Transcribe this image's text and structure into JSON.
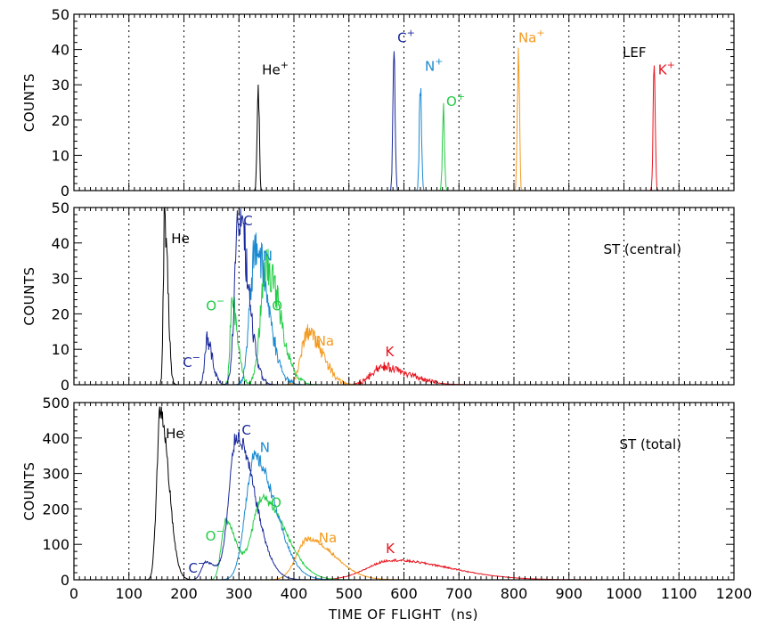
{
  "figure": {
    "xlabel": "TIME OF FLIGHT  (ns)",
    "xlim": [
      0,
      1200
    ],
    "x_major_ticks": [
      0,
      100,
      200,
      300,
      400,
      500,
      600,
      700,
      800,
      900,
      1000,
      1100,
      1200
    ],
    "x_tick_labels": [
      "0",
      "100",
      "200",
      "300",
      "400",
      "500",
      "600",
      "700",
      "800",
      "900",
      "1000",
      "1100",
      "1200"
    ],
    "vertical_dotted_gridlines_at": [
      100,
      200,
      300,
      400,
      500,
      600,
      700,
      800,
      900,
      1000,
      1100
    ],
    "colors": {
      "He": "#000000",
      "C": "#1a2a9c",
      "N": "#1a8ad0",
      "O": "#22cc44",
      "Na": "#f39a1e",
      "K": "#e8141e"
    }
  },
  "chart_data": [
    {
      "type": "line",
      "ylabel": "COUNTS",
      "ylim": [
        0,
        50
      ],
      "y_ticks": [
        0,
        10,
        20,
        30,
        40,
        50
      ],
      "y_tick_labels": [
        "0",
        "10",
        "20",
        "30",
        "40",
        "50"
      ],
      "note": "LEF",
      "grid": "vertical dotted",
      "series": [
        {
          "species": "He",
          "peaks": [
            {
              "x": 335,
              "height": 29,
              "width": 2
            }
          ]
        },
        {
          "species": "C",
          "peaks": [
            {
              "x": 582,
              "height": 41,
              "width": 2
            }
          ]
        },
        {
          "species": "N",
          "peaks": [
            {
              "x": 630,
              "height": 31,
              "width": 2
            }
          ]
        },
        {
          "species": "O",
          "peaks": [
            {
              "x": 672,
              "height": 21,
              "width": 2
            }
          ]
        },
        {
          "species": "Na",
          "peaks": [
            {
              "x": 808,
              "height": 39,
              "width": 2
            }
          ]
        },
        {
          "species": "K",
          "peaks": [
            {
              "x": 1055,
              "height": 34,
              "width": 2
            }
          ]
        }
      ],
      "annotations": [
        {
          "text": "He",
          "sup": "+",
          "species": "He",
          "x": 342,
          "y": 33
        },
        {
          "text": "C",
          "sup": "+",
          "species": "C",
          "x": 588,
          "y": 42
        },
        {
          "text": "N",
          "sup": "+",
          "species": "N",
          "x": 638,
          "y": 34
        },
        {
          "text": "O",
          "sup": "+",
          "species": "O",
          "x": 677,
          "y": 24
        },
        {
          "text": "Na",
          "sup": "+",
          "species": "Na",
          "x": 808,
          "y": 42
        },
        {
          "text": "K",
          "sup": "+",
          "species": "K",
          "x": 1062,
          "y": 33
        }
      ]
    },
    {
      "type": "line",
      "ylabel": "COUNTS",
      "ylim": [
        0,
        50
      ],
      "y_ticks": [
        0,
        10,
        20,
        30,
        40,
        50
      ],
      "y_tick_labels": [
        "0",
        "10",
        "20",
        "30",
        "40",
        "50"
      ],
      "note": "ST (central)",
      "grid": "vertical dotted",
      "series": [
        {
          "species": "He",
          "peaks": [
            {
              "x": 165,
              "height": 49,
              "width": 3
            }
          ]
        },
        {
          "species": "C",
          "peaks": [
            {
              "x": 242,
              "height": 13,
              "width": 5
            },
            {
              "x": 300,
              "height": 48,
              "width": 9
            }
          ]
        },
        {
          "species": "N",
          "peaks": [
            {
              "x": 330,
              "height": 39,
              "width": 12
            }
          ]
        },
        {
          "species": "O",
          "peaks": [
            {
              "x": 288,
              "height": 24,
              "width": 5
            },
            {
              "x": 350,
              "height": 33,
              "width": 13
            }
          ]
        },
        {
          "species": "Na",
          "peaks": [
            {
              "x": 425,
              "height": 15,
              "width": 14
            }
          ]
        },
        {
          "species": "K",
          "peaks": [
            {
              "x": 560,
              "height": 5,
              "width": 25
            }
          ]
        }
      ],
      "annotations": [
        {
          "text": "He",
          "sup": "",
          "species": "He",
          "x": 177,
          "y": 40
        },
        {
          "text": "C",
          "sup": "",
          "species": "C",
          "x": 308,
          "y": 45
        },
        {
          "text": "N",
          "sup": "",
          "species": "N",
          "x": 343,
          "y": 35
        },
        {
          "text": "O",
          "sup": "",
          "species": "O",
          "x": 360,
          "y": 21
        },
        {
          "text": "O",
          "sup": "−",
          "species": "O",
          "x": 240,
          "y": 21
        },
        {
          "text": "C",
          "sup": "−",
          "species": "C",
          "x": 198,
          "y": 5
        },
        {
          "text": "Na",
          "sup": "",
          "species": "Na",
          "x": 440,
          "y": 11
        },
        {
          "text": "K",
          "sup": "",
          "species": "K",
          "x": 566,
          "y": 8
        }
      ]
    },
    {
      "type": "line",
      "ylabel": "COUNTS",
      "ylim": [
        0,
        500
      ],
      "y_ticks": [
        0,
        100,
        200,
        300,
        400,
        500
      ],
      "y_tick_labels": [
        "0",
        "100",
        "200",
        "300",
        "400",
        "500"
      ],
      "note": "ST (total)",
      "grid": "vertical dotted",
      "series": [
        {
          "species": "He",
          "peaks": [
            {
              "x": 157,
              "height": 478,
              "width": 8
            }
          ]
        },
        {
          "species": "C",
          "peaks": [
            {
              "x": 240,
              "height": 50,
              "width": 10
            },
            {
              "x": 296,
              "height": 405,
              "width": 17
            }
          ]
        },
        {
          "species": "N",
          "peaks": [
            {
              "x": 328,
              "height": 345,
              "width": 20
            }
          ]
        },
        {
          "species": "O",
          "peaks": [
            {
              "x": 276,
              "height": 165,
              "width": 10
            },
            {
              "x": 342,
              "height": 230,
              "width": 22
            }
          ]
        },
        {
          "species": "Na",
          "peaks": [
            {
              "x": 425,
              "height": 115,
              "width": 25
            }
          ]
        },
        {
          "species": "K",
          "peaks": [
            {
              "x": 578,
              "height": 55,
              "width": 55
            }
          ]
        }
      ],
      "annotations": [
        {
          "text": "He",
          "sup": "",
          "species": "He",
          "x": 167,
          "y": 400
        },
        {
          "text": "C",
          "sup": "",
          "species": "C",
          "x": 305,
          "y": 410
        },
        {
          "text": "N",
          "sup": "",
          "species": "N",
          "x": 338,
          "y": 360
        },
        {
          "text": "O",
          "sup": "",
          "species": "O",
          "x": 358,
          "y": 205
        },
        {
          "text": "O",
          "sup": "−",
          "species": "O",
          "x": 239,
          "y": 110
        },
        {
          "text": "C",
          "sup": "−",
          "species": "C",
          "x": 208,
          "y": 20
        },
        {
          "text": "Na",
          "sup": "",
          "species": "Na",
          "x": 445,
          "y": 105
        },
        {
          "text": "K",
          "sup": "",
          "species": "K",
          "x": 567,
          "y": 75
        }
      ]
    }
  ]
}
